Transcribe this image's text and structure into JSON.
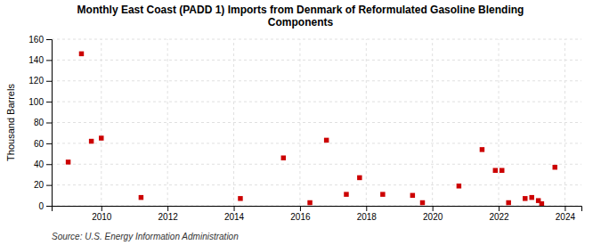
{
  "chart_data": {
    "type": "scatter",
    "title": "Monthly East Coast (PADD 1) Imports from Denmark of Reformulated Gasoline Blending\nComponents",
    "ylabel": "Thousand Barrels",
    "source": "Source: U.S. Energy Information Administration",
    "x": [
      2009.0,
      2009.4,
      2009.7,
      2010.0,
      2011.2,
      2014.2,
      2015.5,
      2016.3,
      2016.8,
      2017.4,
      2017.8,
      2018.5,
      2019.4,
      2019.7,
      2020.8,
      2021.5,
      2021.9,
      2022.1,
      2022.3,
      2022.8,
      2023.0,
      2023.2,
      2023.3,
      2023.7
    ],
    "values": [
      42,
      146,
      62,
      65,
      8,
      7,
      46,
      3,
      63,
      11,
      27,
      11,
      10,
      3,
      19,
      54,
      34,
      34,
      3,
      7,
      8,
      5,
      2,
      37
    ],
    "color": "#cc0000",
    "marker": "square",
    "xlim": [
      2008.5,
      2024.5
    ],
    "xticks": [
      2010,
      2012,
      2014,
      2016,
      2018,
      2020,
      2022,
      2024
    ],
    "ylim": [
      0,
      160
    ],
    "yticks": [
      0,
      20,
      40,
      60,
      80,
      100,
      120,
      140,
      160
    ],
    "grid": true
  }
}
